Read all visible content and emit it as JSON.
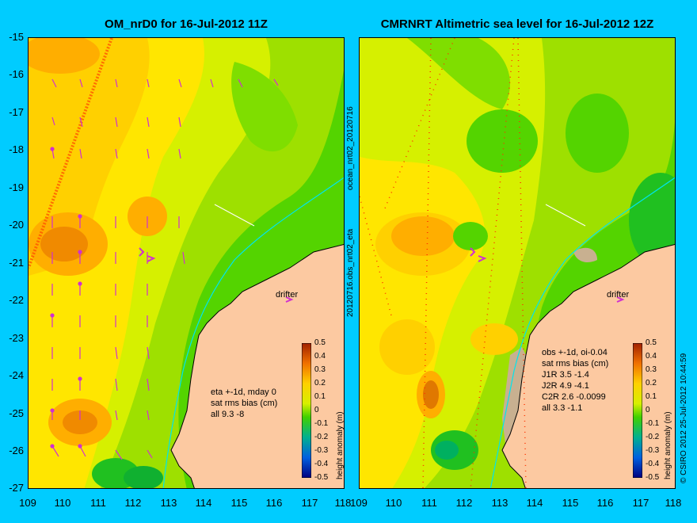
{
  "panels": [
    {
      "title": "OM_nrD0 for 16-Jul-2012 11Z",
      "info_lines": [
        "eta +-1d, mday 0",
        "sat rms bias (cm)",
        "all 9.3 -8"
      ],
      "drifter_label": "drifter"
    },
    {
      "title": "CMRNRT Altimetric sea level  for 16-Jul-2012 12Z",
      "info_lines": [
        "obs +-1d, oi-0.04",
        "sat rms bias (cm)",
        "J1R   3.5 -1.4",
        "J2R   4.9 -4.1",
        "C2R   2.6 -0.0099",
        "all 3.3 -1.1"
      ],
      "drifter_label": "drifter"
    }
  ],
  "y_ticks": [
    "-15",
    "-16",
    "-17",
    "-18",
    "-19",
    "-20",
    "-21",
    "-22",
    "-23",
    "-24",
    "-25",
    "-26",
    "-27"
  ],
  "x_ticks": [
    "109",
    "110",
    "111",
    "112",
    "113",
    "114",
    "115",
    "116",
    "117",
    "118"
  ],
  "colorbar": {
    "label": "height anomaly (m)",
    "ticks": [
      "0.5",
      "0.4",
      "0.3",
      "0.2",
      "0.1",
      "0",
      "-0.1",
      "-0.2",
      "-0.3",
      "-0.4",
      "-0.5"
    ]
  },
  "side_labels": {
    "middle_top": "ocean_nrt02_20120716",
    "middle_bottom": "20120716.obs_nrt02_eta",
    "right": "© CSIRO 2012   25-Jul-2012 10:44:59"
  },
  "colors": {
    "background": "#00ccff",
    "land": "#fcc9a1",
    "coastline": "#00e5ee",
    "arrows": "#d030d0",
    "track": "#ff3300"
  }
}
